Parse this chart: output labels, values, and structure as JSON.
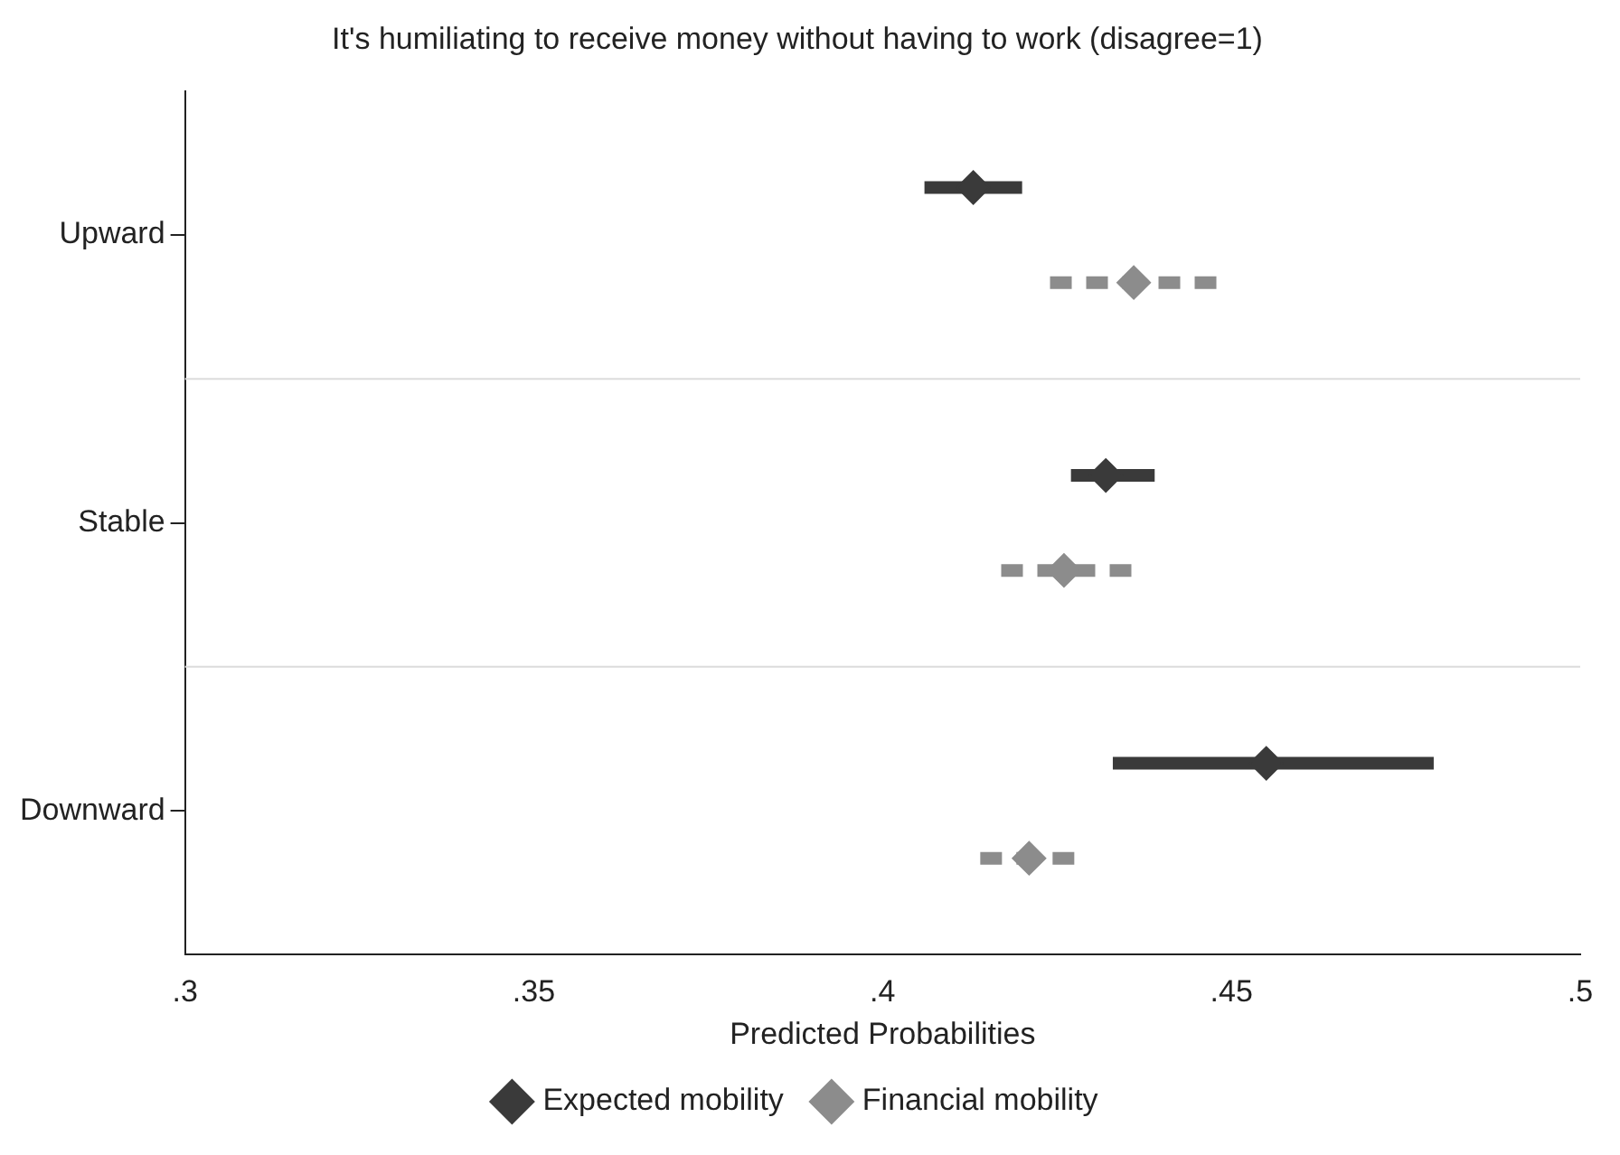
{
  "chart_data": {
    "type": "scatter",
    "orientation": "horizontal",
    "title": "It's humiliating to receive money without having to work (disagree=1)",
    "xlabel": "Predicted Probabilities",
    "categories": [
      "Upward",
      "Stable",
      "Downward"
    ],
    "series": [
      {
        "name": "Expected mobility",
        "color": "#3a3a3a",
        "line_style": "solid",
        "values": [
          0.413,
          0.432,
          0.455
        ],
        "errors": [
          [
            0.406,
            0.42
          ],
          [
            0.427,
            0.439
          ],
          [
            0.433,
            0.479
          ]
        ]
      },
      {
        "name": "Financial mobility",
        "color": "#8c8c8c",
        "line_style": "dashed",
        "values": [
          0.436,
          0.426,
          0.421
        ],
        "errors": [
          [
            0.424,
            0.448
          ],
          [
            0.417,
            0.436
          ],
          [
            0.414,
            0.428
          ]
        ]
      }
    ],
    "xlim": [
      0.3,
      0.5
    ],
    "xticks": [
      {
        "value": 0.3,
        "label": ".3"
      },
      {
        "value": 0.35,
        "label": ".35"
      },
      {
        "value": 0.4,
        "label": ".4"
      },
      {
        "value": 0.45,
        "label": ".45"
      },
      {
        "value": 0.5,
        "label": ".5"
      }
    ],
    "marker": "diamond",
    "grid": "y",
    "legend": "bottom"
  }
}
